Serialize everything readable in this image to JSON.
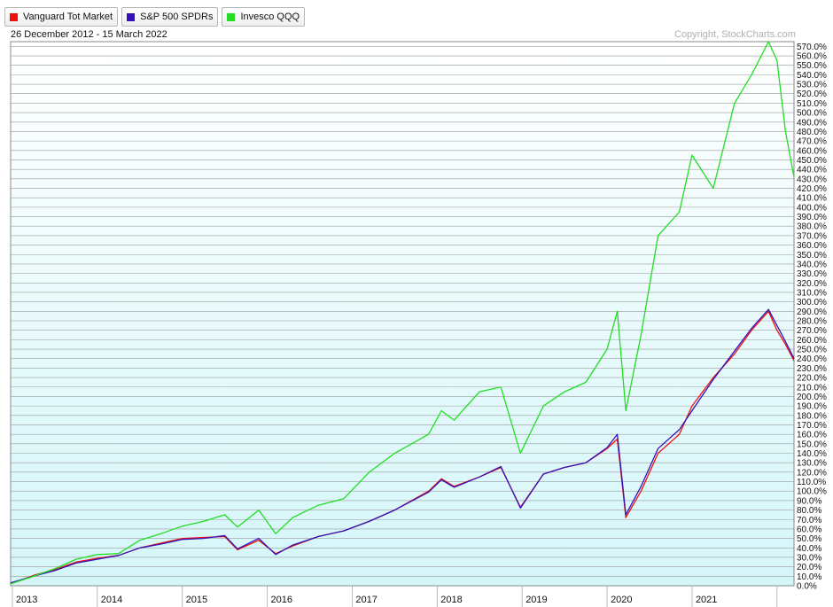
{
  "legend": [
    {
      "label": "Vanguard Tot Market",
      "color": "#ee1111"
    },
    {
      "label": "S&P 500 SPDRs",
      "color": "#3311bb"
    },
    {
      "label": "Invesco QQQ",
      "color": "#22dd22"
    }
  ],
  "date_range": "26 December 2012 - 15 March 2022",
  "copyright": "Copyright, StockCharts.com",
  "colors": {
    "plot_bottom": "#d4f6f9",
    "plot_top": "#ffffff",
    "grid": "#999999"
  },
  "chart_data": {
    "type": "line",
    "x_unit": "year",
    "xlim": [
      2012.98,
      2022.2
    ],
    "ylim": [
      0,
      575
    ],
    "y_ticks": [
      0,
      10,
      20,
      30,
      40,
      50,
      60,
      70,
      80,
      90,
      100,
      110,
      120,
      130,
      140,
      150,
      160,
      170,
      180,
      190,
      200,
      210,
      220,
      230,
      240,
      250,
      260,
      270,
      280,
      290,
      300,
      310,
      320,
      330,
      340,
      350,
      360,
      370,
      380,
      390,
      400,
      410,
      420,
      430,
      440,
      450,
      460,
      470,
      480,
      490,
      500,
      510,
      520,
      530,
      540,
      550,
      560,
      570
    ],
    "y_tick_labels": [
      "0.0%",
      "10.0%",
      "20.0%",
      "30.0%",
      "40.0%",
      "50.0%",
      "60.0%",
      "70.0%",
      "80.0%",
      "90.0%",
      "100.0%",
      "110.0%",
      "120.0%",
      "130.0%",
      "140.0%",
      "150.0%",
      "160.0%",
      "170.0%",
      "180.0%",
      "190.0%",
      "200.0%",
      "210.0%",
      "220.0%",
      "230.0%",
      "240.0%",
      "250.0%",
      "260.0%",
      "270.0%",
      "280.0%",
      "290.0%",
      "300.0%",
      "310.0%",
      "320.0%",
      "330.0%",
      "340.0%",
      "350.0%",
      "360.0%",
      "370.0%",
      "380.0%",
      "390.0%",
      "400.0%",
      "410.0%",
      "420.0%",
      "430.0%",
      "440.0%",
      "450.0%",
      "460.0%",
      "470.0%",
      "480.0%",
      "490.0%",
      "500.0%",
      "510.0%",
      "520.0%",
      "530.0%",
      "540.0%",
      "550.0%",
      "560.0%",
      "570.0%"
    ],
    "x_ticks": [
      2013,
      2014,
      2015,
      2016,
      2017,
      2018,
      2019,
      2020,
      2021
    ],
    "x_tick_labels": [
      "2013",
      "2014",
      "2015",
      "2016",
      "2017",
      "2018",
      "2019",
      "2020",
      "2021"
    ],
    "grid": true,
    "legend_position": "top-left",
    "series": [
      {
        "name": "Vanguard Tot Market",
        "color": "#ee1111",
        "x": [
          2012.98,
          2013.25,
          2013.5,
          2013.75,
          2014.0,
          2014.25,
          2014.5,
          2014.75,
          2015.0,
          2015.25,
          2015.5,
          2015.65,
          2015.9,
          2016.1,
          2016.3,
          2016.6,
          2016.9,
          2017.2,
          2017.5,
          2017.9,
          2018.05,
          2018.2,
          2018.5,
          2018.75,
          2018.98,
          2019.25,
          2019.5,
          2019.75,
          2020.0,
          2020.12,
          2020.22,
          2020.4,
          2020.6,
          2020.85,
          2021.0,
          2021.25,
          2021.5,
          2021.7,
          2021.9,
          2022.0,
          2022.1,
          2022.2
        ],
        "y": [
          2,
          11,
          17,
          25,
          29,
          32,
          40,
          45,
          50,
          51,
          52,
          38,
          48,
          34,
          42,
          52,
          58,
          68,
          80,
          100,
          113,
          105,
          115,
          125,
          83,
          118,
          125,
          130,
          145,
          155,
          72,
          100,
          140,
          160,
          190,
          220,
          245,
          270,
          290,
          270,
          255,
          238
        ]
      },
      {
        "name": "S&P 500 SPDRs",
        "color": "#3311bb",
        "x": [
          2012.98,
          2013.25,
          2013.5,
          2013.75,
          2014.0,
          2014.25,
          2014.5,
          2014.75,
          2015.0,
          2015.25,
          2015.5,
          2015.65,
          2015.9,
          2016.1,
          2016.3,
          2016.6,
          2016.9,
          2017.2,
          2017.5,
          2017.9,
          2018.05,
          2018.2,
          2018.5,
          2018.75,
          2018.98,
          2019.25,
          2019.5,
          2019.75,
          2020.0,
          2020.12,
          2020.22,
          2020.4,
          2020.6,
          2020.85,
          2021.0,
          2021.25,
          2021.5,
          2021.7,
          2021.9,
          2022.0,
          2022.1,
          2022.2
        ],
        "y": [
          3,
          10,
          16,
          24,
          28,
          32,
          40,
          44,
          49,
          50,
          53,
          39,
          50,
          33,
          43,
          52,
          58,
          68,
          80,
          99,
          112,
          104,
          115,
          126,
          82,
          118,
          125,
          130,
          146,
          160,
          75,
          105,
          145,
          165,
          185,
          218,
          248,
          272,
          292,
          275,
          258,
          240
        ]
      },
      {
        "name": "Invesco QQQ",
        "color": "#22dd22",
        "x": [
          2012.98,
          2013.25,
          2013.5,
          2013.75,
          2014.0,
          2014.25,
          2014.5,
          2014.75,
          2015.0,
          2015.25,
          2015.5,
          2015.65,
          2015.9,
          2016.1,
          2016.3,
          2016.6,
          2016.9,
          2017.2,
          2017.5,
          2017.9,
          2018.05,
          2018.2,
          2018.5,
          2018.75,
          2018.98,
          2019.25,
          2019.5,
          2019.75,
          2020.0,
          2020.12,
          2020.22,
          2020.4,
          2020.6,
          2020.85,
          2021.0,
          2021.25,
          2021.5,
          2021.7,
          2021.9,
          2022.0,
          2022.1,
          2022.2
        ],
        "y": [
          2,
          10,
          18,
          28,
          33,
          34,
          48,
          55,
          63,
          68,
          75,
          62,
          80,
          55,
          72,
          85,
          92,
          120,
          140,
          160,
          185,
          175,
          205,
          210,
          140,
          190,
          205,
          215,
          250,
          290,
          185,
          265,
          370,
          395,
          455,
          420,
          510,
          540,
          575,
          555,
          480,
          432
        ]
      }
    ]
  }
}
